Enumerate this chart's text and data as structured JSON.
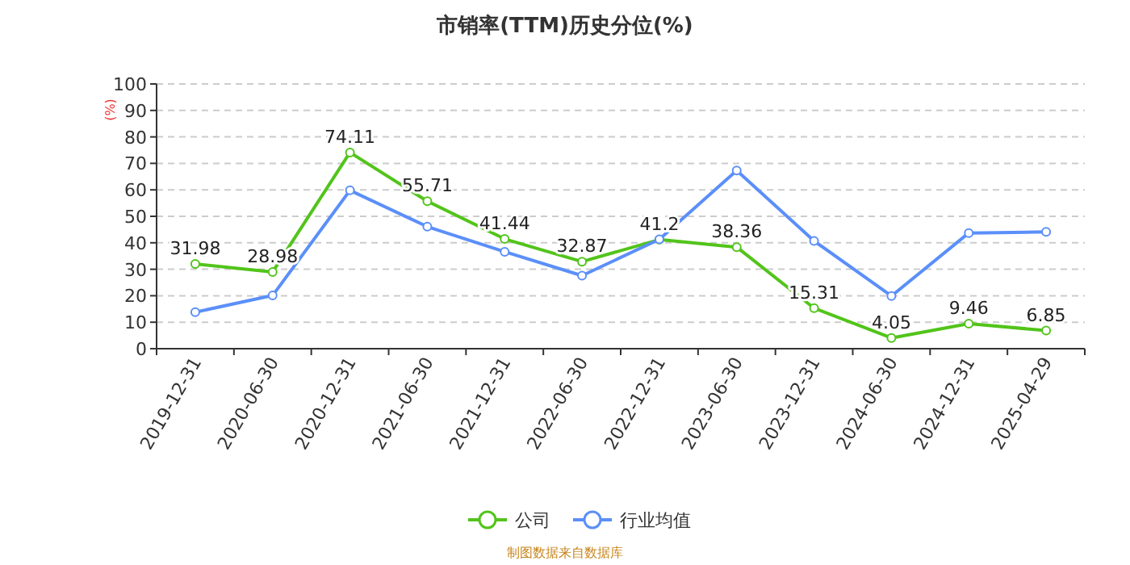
{
  "chart_data": {
    "type": "line",
    "title": "市销率(TTM)历史分位(%)",
    "ylabel": "(%)",
    "categories": [
      "2019-12-31",
      "2020-06-30",
      "2020-12-31",
      "2021-06-30",
      "2021-12-31",
      "2022-06-30",
      "2022-12-31",
      "2023-06-30",
      "2023-12-31",
      "2024-06-30",
      "2024-12-31",
      "2025-04-29"
    ],
    "series": [
      {
        "name": "公司",
        "color": "#52c41a",
        "values": [
          31.98,
          28.98,
          74.11,
          55.71,
          41.44,
          32.87,
          41.2,
          38.36,
          15.31,
          4.05,
          9.46,
          6.85
        ],
        "value_labels": [
          "31.98",
          "28.98",
          "74.11",
          "55.71",
          "41.44",
          "32.87",
          "41.2",
          "38.36",
          "15.31",
          "4.05",
          "9.46",
          "6.85"
        ]
      },
      {
        "name": "行业均值",
        "color": "#5b8ff9",
        "values": [
          13.8,
          20.1,
          59.8,
          46.1,
          36.6,
          27.6,
          41.3,
          67.3,
          40.7,
          19.9,
          43.7,
          44.1
        ]
      }
    ],
    "ylim": [
      0,
      100
    ],
    "yticks": [
      0,
      10,
      20,
      30,
      40,
      50,
      60,
      70,
      80,
      90,
      100
    ],
    "grid": "y",
    "legend": "bottom",
    "marker": "circle",
    "line_style": "solid",
    "annotations": [
      "制图数据来自数据库"
    ]
  }
}
